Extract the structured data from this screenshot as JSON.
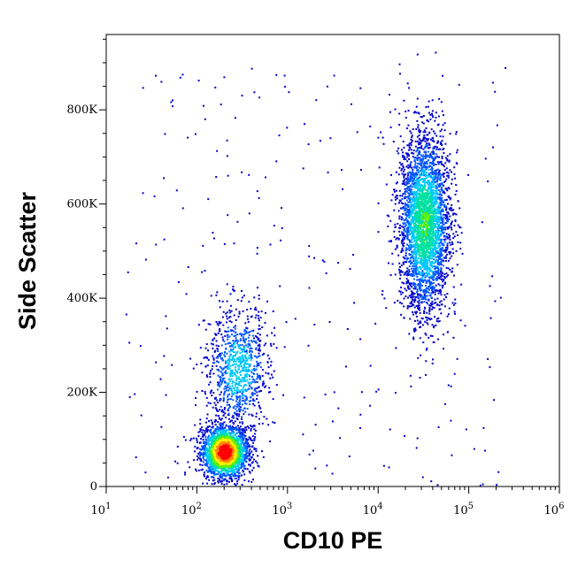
{
  "chart_data": {
    "type": "scatter",
    "title": "",
    "xlabel": "CD10 PE",
    "ylabel": "Side Scatter",
    "x_scale": "log",
    "xlim": [
      10,
      1000000
    ],
    "ylim": [
      0,
      960000
    ],
    "x_ticks": [
      {
        "value": 10,
        "base": "10",
        "exp": "1"
      },
      {
        "value": 100,
        "base": "10",
        "exp": "2"
      },
      {
        "value": 1000,
        "base": "10",
        "exp": "3"
      },
      {
        "value": 10000,
        "base": "10",
        "exp": "4"
      },
      {
        "value": 100000,
        "base": "10",
        "exp": "5"
      },
      {
        "value": 1000000,
        "base": "10",
        "exp": "6"
      }
    ],
    "y_ticks": [
      {
        "value": 0,
        "label": "0"
      },
      {
        "value": 200000,
        "label": "200K"
      },
      {
        "value": 400000,
        "label": "400K"
      },
      {
        "value": 600000,
        "label": "600K"
      },
      {
        "value": 800000,
        "label": "800K"
      }
    ],
    "density_colormap": [
      "#0000cc",
      "#0055ff",
      "#00c8ff",
      "#00e0a0",
      "#66ee00",
      "#ffee00",
      "#ff8800",
      "#ff0000"
    ],
    "populations": [
      {
        "center_x": 200,
        "center_y": 75000,
        "spread_log_x": 0.13,
        "spread_y": 28000,
        "count": 2200,
        "peak_density": 1.0
      },
      {
        "center_x": 280,
        "center_y": 250000,
        "spread_log_x": 0.17,
        "spread_y": 65000,
        "count": 900,
        "peak_density": 0.35
      },
      {
        "center_x": 32000,
        "center_y": 560000,
        "spread_log_x": 0.14,
        "spread_y": 95000,
        "count": 3200,
        "peak_density": 0.5
      }
    ],
    "grid": false,
    "legend": "none"
  }
}
